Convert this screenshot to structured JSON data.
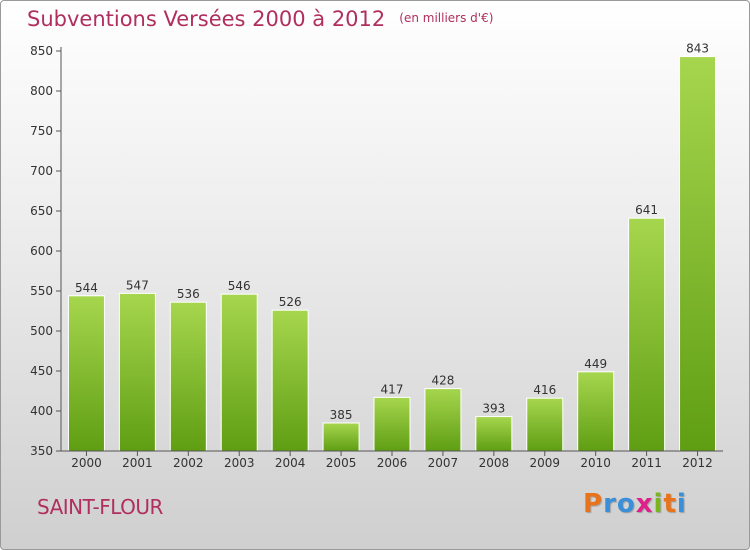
{
  "title": "Subventions Versées 2000 à 2012",
  "subtitle": "(en milliers d'€)",
  "place_name": "SAINT-FLOUR",
  "logo": {
    "text": "ProXiti",
    "letters": [
      "P",
      "r",
      "o",
      "x",
      "i",
      "t",
      "i"
    ],
    "colors": [
      "#e8731a",
      "#3a8fd8",
      "#3a8fd8",
      "#e0208a",
      "#7ab51d",
      "#e8731a",
      "#3a8fd8"
    ]
  },
  "colors": {
    "bar_top": "#a6d64e",
    "bar_bottom": "#5f9e13",
    "title": "#b02f5e",
    "axis": "#555555"
  },
  "chart_data": {
    "type": "bar",
    "title": "Subventions Versées 2000 à 2012",
    "subtitle": "(en milliers d'€)",
    "categories": [
      "2000",
      "2001",
      "2002",
      "2003",
      "2004",
      "2005",
      "2006",
      "2007",
      "2008",
      "2009",
      "2010",
      "2011",
      "2012"
    ],
    "values": [
      544,
      547,
      536,
      546,
      526,
      385,
      417,
      428,
      393,
      416,
      449,
      641,
      843
    ],
    "ylim": [
      350,
      850
    ],
    "yticks": [
      350,
      400,
      450,
      500,
      550,
      600,
      650,
      700,
      750,
      800,
      850
    ],
    "xlabel": "",
    "ylabel": "",
    "grid": false,
    "legend": "none"
  }
}
